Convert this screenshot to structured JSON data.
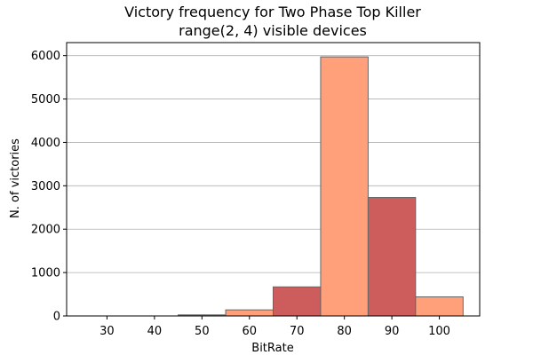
{
  "chart_data": {
    "type": "bar",
    "title": [
      "Victory frequency for Two Phase Top Killer",
      "range(2, 4) visible devices"
    ],
    "xlabel": "BitRate",
    "ylabel": "N. of victories",
    "x_ticks": [
      30,
      40,
      50,
      60,
      70,
      80,
      90,
      100
    ],
    "y_ticks": [
      0,
      1000,
      2000,
      3000,
      4000,
      5000,
      6000
    ],
    "xlim": [
      21.5,
      108.5
    ],
    "ylim": [
      0,
      6300
    ],
    "bin_width": 10,
    "bars": [
      {
        "x": 30,
        "value": 0
      },
      {
        "x": 40,
        "value": 0
      },
      {
        "x": 50,
        "value": 25
      },
      {
        "x": 60,
        "value": 140
      },
      {
        "x": 70,
        "value": 670
      },
      {
        "x": 80,
        "value": 5970
      },
      {
        "x": 90,
        "value": 2730
      },
      {
        "x": 100,
        "value": 440
      }
    ],
    "bar_colors": [
      "#cd5c5c",
      "#ffa07a"
    ],
    "bar_edge_color": "#666666",
    "grid": "y"
  }
}
